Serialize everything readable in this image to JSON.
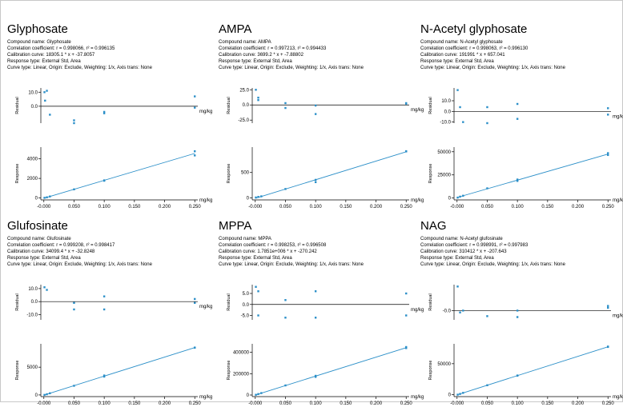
{
  "unit": "mg/kg",
  "labels": {
    "residual": "Residual",
    "response": "Response"
  },
  "colors": {
    "line": "#2b8fc8",
    "point": "#2b8fc8",
    "axis": "#000000"
  },
  "x_ticks": [
    "-0.000",
    "0.050",
    "0.100",
    "0.150",
    "0.200",
    "0.250"
  ],
  "panels": [
    {
      "title": "Glyphosate",
      "info": [
        "Compound name: Glyphosate",
        "Correlation coefficient: r = 0.998066, r² = 0.996135",
        "Calibration curve: 18305.1 * x + -37.8057",
        "Response type: External Std, Area",
        "Curve type: Linear, Origin: Exclude, Weighting: 1/x, Axis trans: None"
      ],
      "chart_data": {
        "type": "scatter",
        "x_range": [
          -0.005,
          0.255
        ],
        "residual": {
          "yticks": [
            "10.0",
            "0.0"
          ],
          "ytick_values": [
            10,
            0
          ],
          "ylim": [
            -12,
            13
          ],
          "points": [
            [
              0.001,
              10
            ],
            [
              0.005,
              11
            ],
            [
              0.002,
              4
            ],
            [
              0.01,
              -6
            ],
            [
              0.05,
              -10
            ],
            [
              0.05,
              -12
            ],
            [
              0.1,
              -5
            ],
            [
              0.1,
              -4
            ],
            [
              0.25,
              7
            ],
            [
              0.25,
              -1
            ]
          ]
        },
        "response": {
          "yticks": [
            "4000",
            "2000",
            "0"
          ],
          "ytick_values": [
            4000,
            2000,
            0
          ],
          "ylim": [
            -200,
            5200
          ],
          "points": [
            [
              0.001,
              15
            ],
            [
              0.005,
              65
            ],
            [
              0.01,
              150
            ],
            [
              0.05,
              880
            ],
            [
              0.1,
              1800
            ],
            [
              0.1,
              1760
            ],
            [
              0.25,
              4780
            ],
            [
              0.25,
              4350
            ]
          ]
        }
      }
    },
    {
      "title": "AMPA",
      "info": [
        "Compound name: AMPA",
        "Correlation coefficient: r = 0.997213, r² = 0.994433",
        "Calibration curve: 3699.2 * x + -7.88802",
        "Response type: External Std, Area",
        "Curve type: Linear, Origin: Exclude, Weighting: 1/x, Axis trans: None"
      ],
      "chart_data": {
        "type": "scatter",
        "x_range": [
          -0.005,
          0.255
        ],
        "residual": {
          "yticks": [
            "25.0",
            "0.0",
            "-25.0"
          ],
          "ytick_values": [
            25,
            0,
            -25
          ],
          "ylim": [
            -30,
            28
          ],
          "points": [
            [
              0.001,
              25
            ],
            [
              0.005,
              12
            ],
            [
              0.005,
              8
            ],
            [
              0.05,
              3
            ],
            [
              0.05,
              -5
            ],
            [
              0.1,
              -1
            ],
            [
              0.1,
              -15
            ],
            [
              0.25,
              2
            ],
            [
              0.25,
              3
            ]
          ]
        },
        "response": {
          "yticks": [
            "500",
            "0"
          ],
          "ytick_values": [
            500,
            0
          ],
          "ylim": [
            -40,
            1000
          ],
          "points": [
            [
              0.001,
              8
            ],
            [
              0.005,
              20
            ],
            [
              0.01,
              30
            ],
            [
              0.05,
              175
            ],
            [
              0.1,
              355
            ],
            [
              0.1,
              310
            ],
            [
              0.25,
              915
            ],
            [
              0.25,
              920
            ]
          ]
        }
      }
    },
    {
      "title": "N-Acetyl glyphosate",
      "info": [
        "Compound name: N-Acetyl glyphosate",
        "Correlation coefficient: r = 0.998063, r² = 0.996130",
        "Calibration curve: 191991 * x + 657.041",
        "Response type: External Std, Area",
        "Curve type: Linear, Origin: Exclude, Weighting: 1/x, Axis trans: None"
      ],
      "chart_data": {
        "type": "scatter",
        "x_range": [
          -0.005,
          0.255
        ],
        "residual": {
          "yticks": [
            "10.0",
            "0.0",
            "-10.0"
          ],
          "ytick_values": [
            10,
            0,
            -10
          ],
          "ylim": [
            -11,
            22
          ],
          "points": [
            [
              0.001,
              20
            ],
            [
              0.005,
              4
            ],
            [
              0.01,
              -10
            ],
            [
              0.05,
              4
            ],
            [
              0.05,
              -11
            ],
            [
              0.1,
              7
            ],
            [
              0.1,
              -7
            ],
            [
              0.25,
              3
            ],
            [
              0.25,
              -3
            ]
          ]
        },
        "response": {
          "yticks": [
            "50000",
            "25000",
            "0"
          ],
          "ytick_values": [
            50000,
            25000,
            0
          ],
          "ylim": [
            -2000,
            55000
          ],
          "points": [
            [
              0.001,
              500
            ],
            [
              0.005,
              1500
            ],
            [
              0.01,
              2500
            ],
            [
              0.05,
              10500
            ],
            [
              0.1,
              20000
            ],
            [
              0.1,
              18500
            ],
            [
              0.25,
              48500
            ],
            [
              0.25,
              46500
            ]
          ]
        }
      }
    },
    {
      "title": "Glufosinate",
      "info": [
        "Compound name: Glufosinate",
        "Correlation coefficient: r = 0.999208, r² = 0.998417",
        "Calibration curve: 34099.4 * x + -32.8248",
        "Response type: External Std, Area",
        "Curve type: Linear, Origin: Exclude, Weighting: 1/x, Axis trans: None"
      ],
      "chart_data": {
        "type": "scatter",
        "x_range": [
          -0.005,
          0.255
        ],
        "residual": {
          "yticks": [
            "10.0",
            "0.0",
            "-10.0"
          ],
          "ytick_values": [
            10,
            0,
            -10
          ],
          "ylim": [
            -14,
            13
          ],
          "points": [
            [
              0.001,
              11
            ],
            [
              0.005,
              9
            ],
            [
              0.05,
              -1
            ],
            [
              0.05,
              -6
            ],
            [
              0.1,
              4
            ],
            [
              0.1,
              -6
            ],
            [
              0.25,
              2
            ],
            [
              0.25,
              -1
            ]
          ]
        },
        "response": {
          "yticks": [
            "5000",
            "0"
          ],
          "ytick_values": [
            5000,
            0
          ],
          "ylim": [
            -300,
            9200
          ],
          "points": [
            [
              0.001,
              10
            ],
            [
              0.005,
              130
            ],
            [
              0.01,
              300
            ],
            [
              0.05,
              1650
            ],
            [
              0.1,
              3300
            ],
            [
              0.1,
              3500
            ],
            [
              0.25,
              8500
            ],
            [
              0.25,
              8530
            ]
          ]
        }
      }
    },
    {
      "title": "MPPA",
      "info": [
        "Compound name: MPPA",
        "Correlation coefficient: r = 0.998253, r² = 0.996508",
        "Calibration curve: 1.7851e+006 * x + -270.242",
        "Response type: External Std, Area",
        "Curve type: Linear, Origin: Exclude, Weighting: 1/x, Axis trans: None"
      ],
      "chart_data": {
        "type": "scatter",
        "x_range": [
          -0.005,
          0.255
        ],
        "residual": {
          "yticks": [
            "5.0",
            "0.0",
            "-5.0"
          ],
          "ytick_values": [
            5,
            0,
            -5
          ],
          "ylim": [
            -7,
            9
          ],
          "points": [
            [
              0.001,
              8
            ],
            [
              0.005,
              6
            ],
            [
              0.005,
              -5
            ],
            [
              0.05,
              2
            ],
            [
              0.05,
              -6
            ],
            [
              0.1,
              6
            ],
            [
              0.1,
              -6
            ],
            [
              0.25,
              5
            ],
            [
              0.25,
              -5
            ]
          ]
        },
        "response": {
          "yticks": [
            "400000",
            "200000",
            "0"
          ],
          "ytick_values": [
            400000,
            200000,
            0
          ],
          "ylim": [
            -15000,
            480000
          ],
          "points": [
            [
              0.001,
              2000
            ],
            [
              0.005,
              9000
            ],
            [
              0.01,
              18000
            ],
            [
              0.05,
              90000
            ],
            [
              0.1,
              180000
            ],
            [
              0.1,
              170000
            ],
            [
              0.25,
              450000
            ],
            [
              0.25,
              440000
            ]
          ]
        }
      }
    },
    {
      "title": "NAG",
      "info": [
        "Compound name: N-Acetyl glufosinate",
        "Correlation coefficient: r = 0.998991, r² = 0.997983",
        "Calibration curve: 310412 * x + -207.643",
        "Response type: External Std, Area",
        "Curve type: Linear, Origin: Exclude, Weighting: 1/x, Axis trans: None"
      ],
      "chart_data": {
        "type": "scatter",
        "x_range": [
          -0.005,
          0.255
        ],
        "residual": {
          "yticks": [
            "-0.0"
          ],
          "ytick_values": [
            0
          ],
          "ylim": [
            -10,
            28
          ],
          "points": [
            [
              0.001,
              26
            ],
            [
              0.005,
              -2
            ],
            [
              0.01,
              0
            ],
            [
              0.05,
              -6
            ],
            [
              0.1,
              0
            ],
            [
              0.1,
              -7
            ],
            [
              0.25,
              5
            ],
            [
              0.25,
              3
            ]
          ]
        },
        "response": {
          "yticks": [
            "50000",
            "0"
          ],
          "ytick_values": [
            50000,
            0
          ],
          "ylim": [
            -3000,
            82000
          ],
          "points": [
            [
              0.001,
              100
            ],
            [
              0.005,
              1300
            ],
            [
              0.01,
              3000
            ],
            [
              0.05,
              15300
            ],
            [
              0.1,
              30700
            ],
            [
              0.1,
              31000
            ],
            [
              0.25,
              77000
            ],
            [
              0.25,
              77600
            ]
          ]
        }
      }
    }
  ]
}
